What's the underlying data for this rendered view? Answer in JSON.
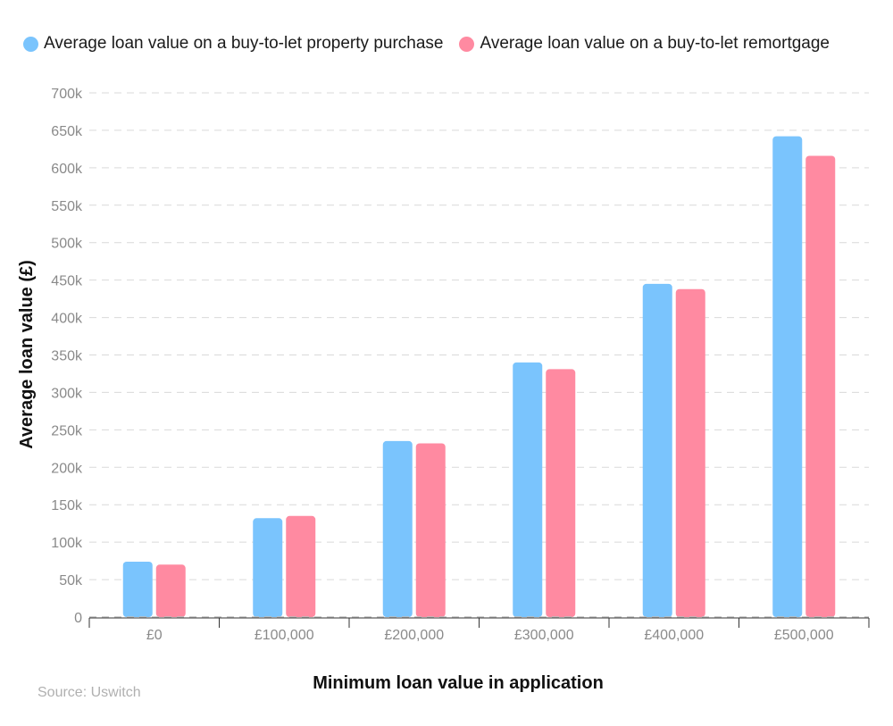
{
  "legend": {
    "purchase": "Average loan value on a buy-to-let property purchase",
    "remortgage": "Average loan value on a buy-to-let remortgage"
  },
  "colors": {
    "purchase": "#7ac4fd",
    "remortgage": "#ff8aa1",
    "grid": "#d9d9d9",
    "axis": "#333333"
  },
  "source": "Source: Uswitch",
  "chart_data": {
    "type": "bar",
    "title": "",
    "xlabel": "Minimum loan value in application",
    "ylabel": "Average loan value (£)",
    "categories": [
      "£0",
      "£100,000",
      "£200,000",
      "£300,000",
      "£400,000",
      "£500,000"
    ],
    "series": [
      {
        "name": "Average loan value on a buy-to-let property purchase",
        "key": "purchase",
        "values": [
          74000,
          132000,
          235000,
          340000,
          445000,
          642000
        ]
      },
      {
        "name": "Average loan value on a buy-to-let remortgage",
        "key": "remortgage",
        "values": [
          70000,
          135000,
          232000,
          331000,
          438000,
          616000
        ]
      }
    ],
    "ylim": [
      0,
      700000
    ],
    "yticks": [
      0,
      50000,
      100000,
      150000,
      200000,
      250000,
      300000,
      350000,
      400000,
      450000,
      500000,
      550000,
      600000,
      650000,
      700000
    ],
    "ytick_labels": [
      "0",
      "50k",
      "100k",
      "150k",
      "200k",
      "250k",
      "300k",
      "350k",
      "400k",
      "450k",
      "500k",
      "550k",
      "600k",
      "650k",
      "700k"
    ],
    "grid": true,
    "legend_position": "top"
  }
}
